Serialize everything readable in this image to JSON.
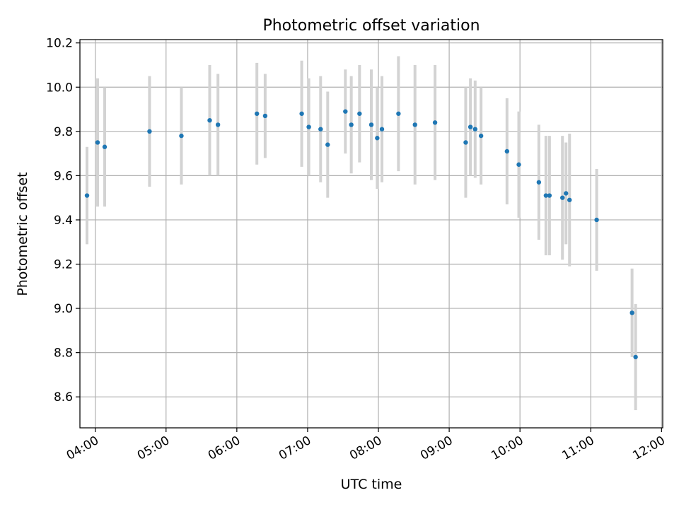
{
  "chart_data": {
    "type": "scatter",
    "title": "Photometric offset variation",
    "xlabel": "UTC time",
    "ylabel": "Photometric offset",
    "x_unit": "UTC time (HH:MM)",
    "xlim": [
      "03:47",
      "12:01"
    ],
    "ylim": [
      8.46,
      10.215
    ],
    "x_ticks": [
      "04:00",
      "05:00",
      "06:00",
      "07:00",
      "08:00",
      "09:00",
      "10:00",
      "11:00",
      "12:00"
    ],
    "y_ticks": [
      "8.6",
      "8.8",
      "9.0",
      "9.2",
      "9.4",
      "9.6",
      "9.8",
      "10.0",
      "10.2"
    ],
    "grid": true,
    "legend": "none",
    "colors": {
      "point": "#1f77b4",
      "errorbar": "#d3d3d3",
      "grid": "#b0b0b0"
    },
    "series": [
      {
        "points": [
          {
            "x": "03:53",
            "y": 9.51,
            "err": 0.22
          },
          {
            "x": "04:02",
            "y": 9.75,
            "err": 0.29
          },
          {
            "x": "04:08",
            "y": 9.73,
            "err": 0.27
          },
          {
            "x": "04:46",
            "y": 9.8,
            "err": 0.25
          },
          {
            "x": "05:13",
            "y": 9.78,
            "err": 0.22
          },
          {
            "x": "05:37",
            "y": 9.85,
            "err": 0.25
          },
          {
            "x": "05:44",
            "y": 9.83,
            "err": 0.23
          },
          {
            "x": "06:17",
            "y": 9.88,
            "err": 0.23
          },
          {
            "x": "06:24",
            "y": 9.87,
            "err": 0.19
          },
          {
            "x": "06:55",
            "y": 9.88,
            "err": 0.24
          },
          {
            "x": "07:01",
            "y": 9.82,
            "err": 0.22
          },
          {
            "x": "07:11",
            "y": 9.81,
            "err": 0.24
          },
          {
            "x": "07:17",
            "y": 9.74,
            "err": 0.24
          },
          {
            "x": "07:32",
            "y": 9.89,
            "err": 0.19
          },
          {
            "x": "07:37",
            "y": 9.83,
            "err": 0.22
          },
          {
            "x": "07:44",
            "y": 9.88,
            "err": 0.22
          },
          {
            "x": "07:54",
            "y": 9.83,
            "err": 0.25
          },
          {
            "x": "07:59",
            "y": 9.77,
            "err": 0.23
          },
          {
            "x": "08:03",
            "y": 9.81,
            "err": 0.24
          },
          {
            "x": "08:17",
            "y": 9.88,
            "err": 0.26
          },
          {
            "x": "08:31",
            "y": 9.83,
            "err": 0.27
          },
          {
            "x": "08:48",
            "y": 9.84,
            "err": 0.26
          },
          {
            "x": "09:14",
            "y": 9.75,
            "err": 0.25
          },
          {
            "x": "09:18",
            "y": 9.82,
            "err": 0.22
          },
          {
            "x": "09:22",
            "y": 9.81,
            "err": 0.22
          },
          {
            "x": "09:27",
            "y": 9.78,
            "err": 0.22
          },
          {
            "x": "09:49",
            "y": 9.71,
            "err": 0.24
          },
          {
            "x": "09:59",
            "y": 9.65,
            "err": 0.24
          },
          {
            "x": "10:16",
            "y": 9.57,
            "err": 0.26
          },
          {
            "x": "10:22",
            "y": 9.51,
            "err": 0.27
          },
          {
            "x": "10:25",
            "y": 9.51,
            "err": 0.27
          },
          {
            "x": "10:36",
            "y": 9.5,
            "err": 0.28
          },
          {
            "x": "10:39",
            "y": 9.52,
            "err": 0.23
          },
          {
            "x": "10:42",
            "y": 9.49,
            "err": 0.3
          },
          {
            "x": "11:05",
            "y": 9.4,
            "err": 0.23
          },
          {
            "x": "11:35",
            "y": 8.98,
            "err": 0.2
          },
          {
            "x": "11:38",
            "y": 8.78,
            "err": 0.24
          }
        ]
      }
    ]
  }
}
